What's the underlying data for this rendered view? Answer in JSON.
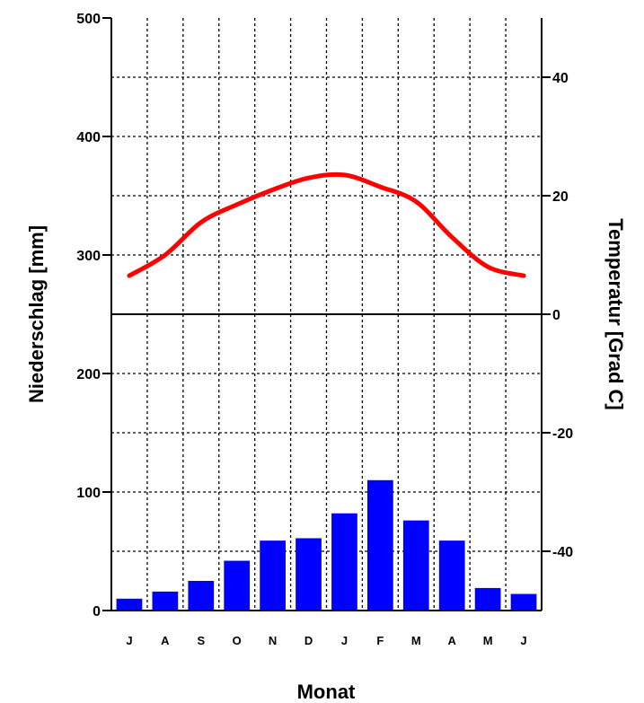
{
  "chart_data": {
    "type": "bar",
    "title": "",
    "xlabel": "Monat",
    "ylabel": "Niederschlag [mm]",
    "y2label": "Temperatur [Grad C]",
    "categories": [
      "J",
      "A",
      "S",
      "O",
      "N",
      "D",
      "J",
      "F",
      "M",
      "A",
      "M",
      "J"
    ],
    "ylim": [
      0,
      500
    ],
    "y_ticks": [
      0,
      100,
      200,
      300,
      400,
      500
    ],
    "y2lim": [
      -50,
      50
    ],
    "y2_ticks": [
      -40,
      -20,
      0,
      20,
      40
    ],
    "grid": true,
    "series": [
      {
        "type": "bar",
        "axis": "left",
        "color": "#0000ff",
        "values": [
          10,
          16,
          25,
          42,
          59,
          61,
          82,
          110,
          76,
          59,
          19,
          14
        ]
      },
      {
        "type": "line",
        "axis": "right",
        "color": "#ff0000",
        "values": [
          6.5,
          10,
          15.5,
          18.5,
          21,
          23,
          23.5,
          21.5,
          19,
          13,
          8,
          6.5
        ]
      }
    ]
  }
}
